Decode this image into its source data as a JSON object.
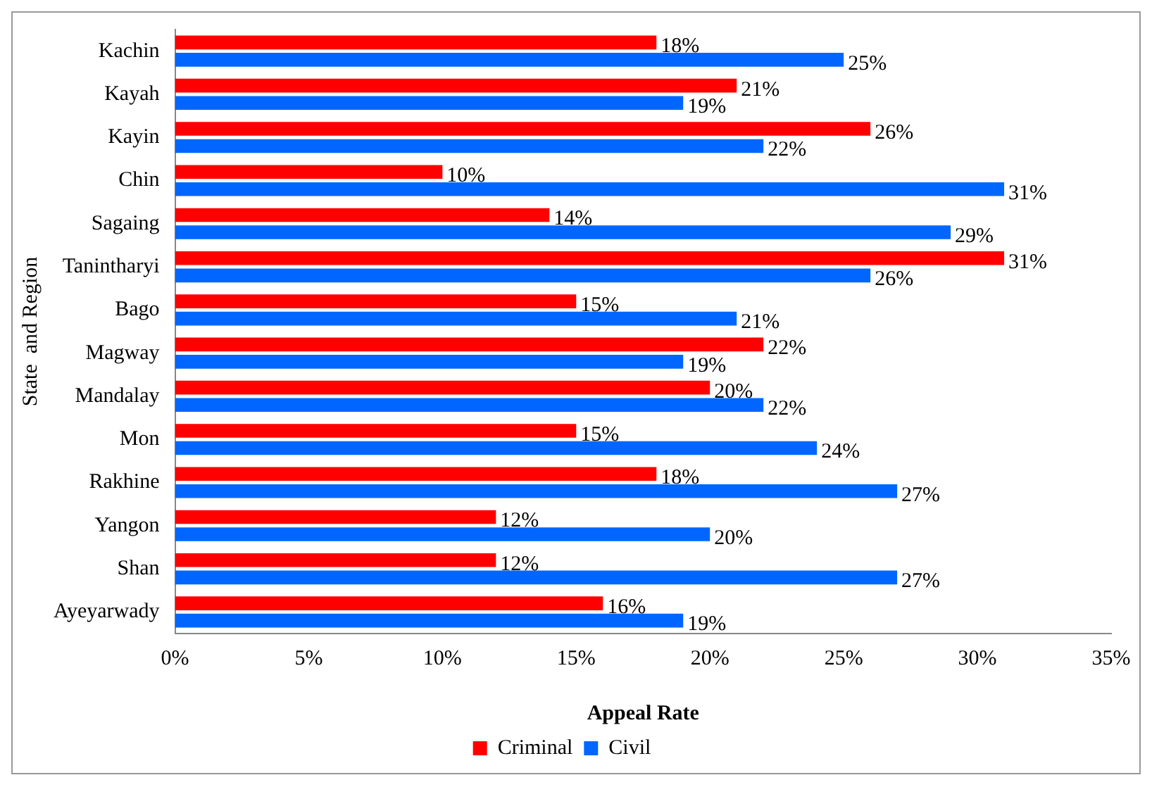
{
  "chart_data": {
    "type": "bar",
    "orientation": "horizontal",
    "xlabel": "Appeal Rate",
    "ylabel": "State  and Region",
    "categories": [
      "Kachin",
      "Kayah",
      "Kayin",
      "Chin",
      "Sagaing",
      "Tanintharyi",
      "Bago",
      "Magway",
      "Mandalay",
      "Mon",
      "Rakhine",
      "Yangon",
      "Shan",
      "Ayeyarwady"
    ],
    "series": [
      {
        "name": "Criminal",
        "color": "#ff0000",
        "values": [
          18,
          21,
          26,
          10,
          14,
          31,
          15,
          22,
          20,
          15,
          18,
          12,
          12,
          16
        ],
        "value_labels": [
          "18%",
          "21%",
          "26%",
          "10%",
          "14%",
          "31%",
          "15%",
          "22%",
          "20%",
          "15%",
          "18%",
          "12%",
          "12%",
          "16%"
        ]
      },
      {
        "name": "Civil",
        "color": "#0066ff",
        "values": [
          25,
          19,
          22,
          31,
          29,
          26,
          21,
          19,
          22,
          24,
          27,
          20,
          27,
          19
        ],
        "value_labels": [
          "25%",
          "19%",
          "22%",
          "31%",
          "29%",
          "26%",
          "21%",
          "19%",
          "22%",
          "24%",
          "27%",
          "20%",
          "27%",
          "19%"
        ]
      }
    ],
    "xlim": [
      0,
      35
    ],
    "xticks": [
      {
        "value": 0,
        "label": "0%"
      },
      {
        "value": 5,
        "label": "5%"
      },
      {
        "value": 10,
        "label": "10%"
      },
      {
        "value": 15,
        "label": "15%"
      },
      {
        "value": 20,
        "label": "20%"
      },
      {
        "value": 25,
        "label": "25%"
      },
      {
        "value": 30,
        "label": "30%"
      },
      {
        "value": 35,
        "label": "35%"
      }
    ],
    "grid": false,
    "legend": "bottom"
  }
}
